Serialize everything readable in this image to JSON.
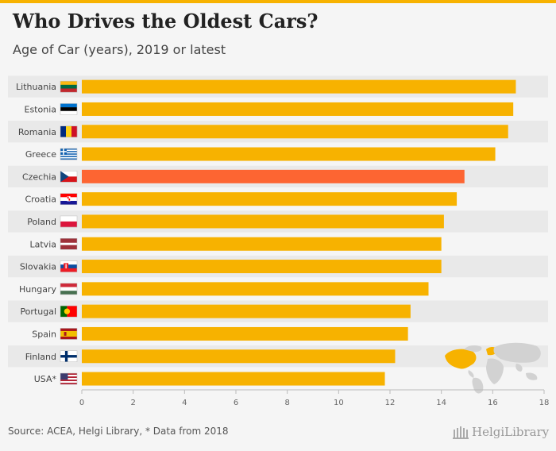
{
  "header": {
    "title": "Who Drives the Oldest Cars?",
    "subtitle": "Age of Car (years), 2019 or latest"
  },
  "footer": {
    "source": "Source: ACEA, Helgi Library, * Data from 2018",
    "logo_text": "HelgiLibrary"
  },
  "colors": {
    "bar": "#f7b200",
    "highlight": "#fd6532",
    "row_band": "#e9e9e9",
    "map_land": "#d2d2d2",
    "map_highlight": "#f7b200"
  },
  "chart_data": {
    "type": "bar",
    "orientation": "horizontal",
    "title": "Who Drives the Oldest Cars?",
    "subtitle": "Age of Car (years), 2019 or latest",
    "categories": [
      "Lithuania",
      "Estonia",
      "Romania",
      "Greece",
      "Czechia",
      "Croatia",
      "Poland",
      "Latvia",
      "Slovakia",
      "Hungary",
      "Portugal",
      "Spain",
      "Finland",
      "USA*"
    ],
    "values": [
      16.9,
      16.8,
      16.6,
      16.1,
      14.9,
      14.6,
      14.1,
      14.0,
      14.0,
      13.5,
      12.8,
      12.7,
      12.2,
      11.8
    ],
    "highlight": "Czechia",
    "flags": [
      "lithuania-flag",
      "estonia-flag",
      "romania-flag",
      "greece-flag",
      "czechia-flag",
      "croatia-flag",
      "poland-flag",
      "latvia-flag",
      "slovakia-flag",
      "hungary-flag",
      "portugal-flag",
      "spain-flag",
      "finland-flag",
      "usa-flag"
    ],
    "xticks": [
      "0",
      "2",
      "4",
      "6",
      "8",
      "10",
      "12",
      "14",
      "16",
      "18"
    ],
    "xlim": [
      0,
      18
    ],
    "grid": false,
    "legend": "none"
  }
}
